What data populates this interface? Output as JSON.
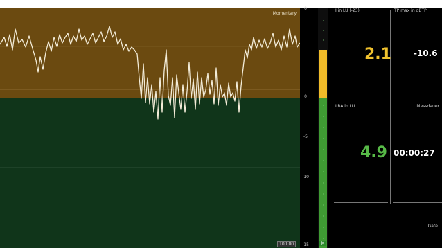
{
  "top_caption": "",
  "graph": {
    "label": "Momentary",
    "time_readout": "100:00"
  },
  "meter": {
    "scale_labels": [
      "0",
      "-5",
      "-10",
      "-15"
    ],
    "level_label": "M",
    "colors": {
      "yellow": "#f0bb29",
      "green": "#3f9a33"
    }
  },
  "panels": {
    "integrated": {
      "label": "I in LU (-23)",
      "value": "2.1"
    },
    "true_peak": {
      "label": "TP max in dBTP",
      "value": "-10.6"
    },
    "lra": {
      "label": "LRA in LU",
      "value": "4.9"
    },
    "duration": {
      "label": "Messdauer",
      "value": "00:00:27"
    },
    "gate": {
      "label": "Gate"
    }
  }
}
